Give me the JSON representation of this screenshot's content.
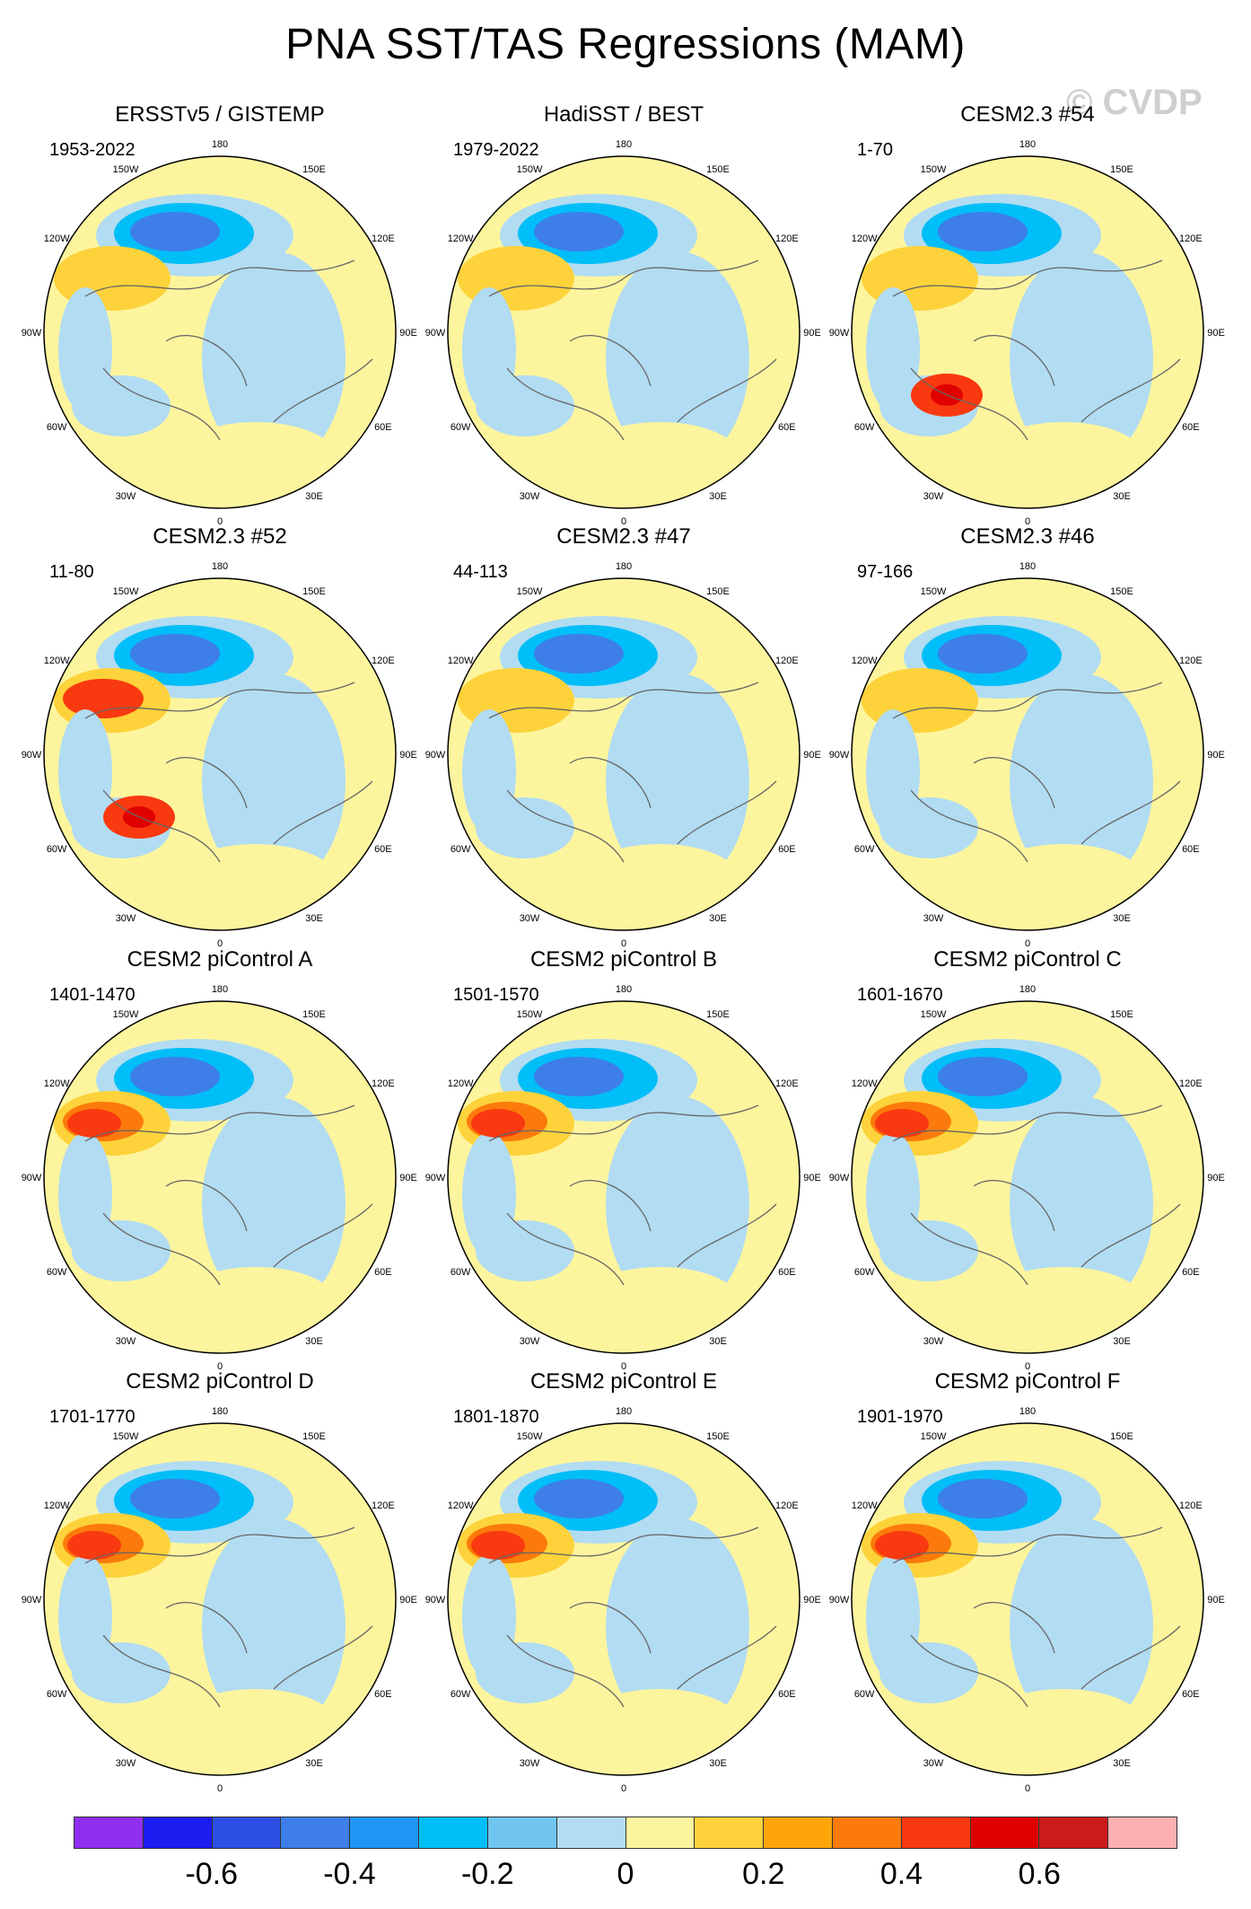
{
  "title": "PNA SST/TAS Regressions (MAM)",
  "watermark": "© CVDP",
  "lon_labels": [
    "180",
    "150E",
    "120E",
    "90E",
    "60E",
    "30E",
    "0",
    "30W",
    "60W",
    "90W",
    "120W",
    "150W"
  ],
  "panels": [
    {
      "title": "ERSSTv5 / GISTEMP",
      "period": "1953-2022"
    },
    {
      "title": "HadiSST / BEST",
      "period": "1979-2022"
    },
    {
      "title": "CESM2.3 #54",
      "period": "1-70"
    },
    {
      "title": "CESM2.3 #52",
      "period": "11-80"
    },
    {
      "title": "CESM2.3 #47",
      "period": "44-113"
    },
    {
      "title": "CESM2.3 #46",
      "period": "97-166"
    },
    {
      "title": "CESM2 piControl A",
      "period": "1401-1470"
    },
    {
      "title": "CESM2 piControl B",
      "period": "1501-1570"
    },
    {
      "title": "CESM2 piControl C",
      "period": "1601-1670"
    },
    {
      "title": "CESM2 piControl D",
      "period": "1701-1770"
    },
    {
      "title": "CESM2 piControl E",
      "period": "1801-1870"
    },
    {
      "title": "CESM2 piControl F",
      "period": "1901-1970"
    }
  ],
  "colorbar": {
    "colors": [
      "#8f2ff0",
      "#1c1cf0",
      "#2e4fe6",
      "#3d7ee8",
      "#1e96f5",
      "#00bef7",
      "#6fc5f0",
      "#b2dcf2",
      "#fdf59e",
      "#fed23a",
      "#fda509",
      "#fc7a0b",
      "#f9390f",
      "#e00000",
      "#cb1b1b",
      "#fcb0b0"
    ],
    "labels": [
      "-0.6",
      "-0.4",
      "-0.2",
      "0",
      "0.2",
      "0.4",
      "0.6"
    ]
  },
  "colors": {
    "land_outline": "#ffffff",
    "coast": "#555555"
  }
}
